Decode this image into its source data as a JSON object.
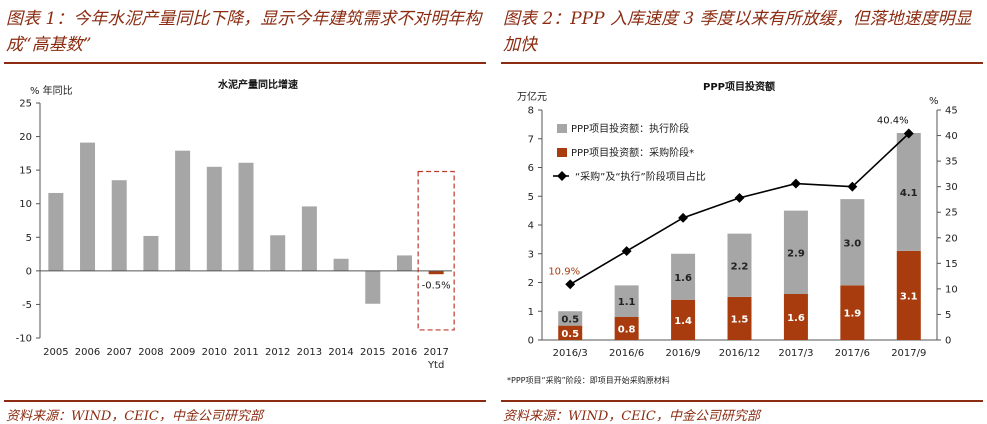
{
  "figure1": {
    "heading": "图表 1：今年水泥产量同比下降，显示今年建筑需求不对明年构成“高基数”",
    "source": "资料来源：WIND，CEIC，中金公司研究部",
    "chart_data": {
      "type": "bar",
      "title": "水泥产量同比增速",
      "ylabel": "% 年同比",
      "ylim": [
        -10,
        25
      ],
      "yticks": [
        -10,
        -5,
        0,
        5,
        10,
        15,
        20,
        25
      ],
      "categories": [
        "2005",
        "2006",
        "2007",
        "2008",
        "2009",
        "2010",
        "2011",
        "2012",
        "2013",
        "2014",
        "2015",
        "2016",
        "2017\nYtd"
      ],
      "values": [
        11.6,
        19.1,
        13.5,
        5.2,
        17.9,
        15.5,
        16.1,
        5.3,
        9.6,
        1.8,
        -4.9,
        2.3,
        -0.5
      ],
      "annotations": [
        {
          "category": "2017\nYtd",
          "text": "-0.5%"
        }
      ],
      "colors": {
        "bar": "#a6a6a6",
        "highlight_bar": "#a83c0f",
        "highlight_box": "#c0392b"
      }
    }
  },
  "figure2": {
    "heading": "图表 2：PPP 入库速度 3 季度以来有所放缓，但落地速度明显加快",
    "source": "资料来源：WIND，CEIC，中金公司研究部",
    "note": "*PPP项目“采购”阶段：即项目开始采购原材料",
    "chart_data": {
      "type": "bar",
      "stacked": true,
      "title": "PPP项目投资额",
      "ylabel": "万亿元",
      "y2label": "%",
      "ylim": [
        0,
        8
      ],
      "y2lim": [
        0,
        45
      ],
      "yticks": [
        0,
        1,
        2,
        3,
        4,
        5,
        6,
        7,
        8
      ],
      "y2ticks": [
        0,
        5,
        10,
        15,
        20,
        25,
        30,
        35,
        40,
        45
      ],
      "categories": [
        "2016/3",
        "2016/6",
        "2016/9",
        "2016/12",
        "2017/3",
        "2017/6",
        "2017/9"
      ],
      "series": [
        {
          "name": "PPP项目投资额：采购阶段*",
          "kind": "bar",
          "color": "#a83c0f",
          "values": [
            0.5,
            0.8,
            1.4,
            1.5,
            1.6,
            1.9,
            3.1
          ]
        },
        {
          "name": "PPP项目投资额：执行阶段",
          "kind": "bar",
          "color": "#a6a6a6",
          "values": [
            0.5,
            1.1,
            1.6,
            2.2,
            2.9,
            3.0,
            4.1
          ]
        },
        {
          "name": "“采购”及“执行”阶段项目占比",
          "kind": "line",
          "axis": "right",
          "color": "#000000",
          "values": [
            10.9,
            17.4,
            23.9,
            27.8,
            30.6,
            30.0,
            40.4
          ]
        }
      ],
      "annotations": [
        {
          "category": "2016/3",
          "text": "10.9%",
          "color": "#a83c0f"
        },
        {
          "category": "2017/9",
          "text": "40.4%",
          "color": "#111111"
        }
      ],
      "legend": "top-left"
    }
  }
}
